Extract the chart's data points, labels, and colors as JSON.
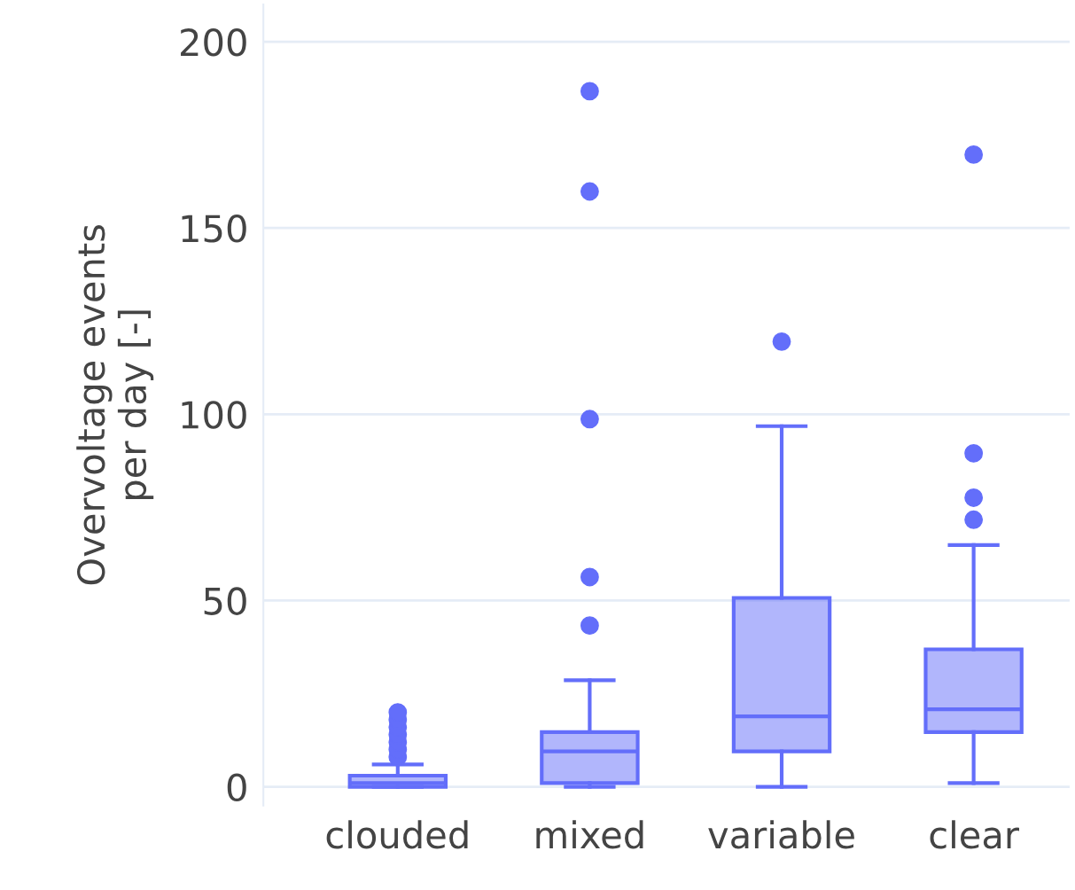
{
  "chart_data": {
    "type": "box",
    "ylabel": "Overvoltage events\nper day [-]",
    "categories": [
      "clouded",
      "mixed",
      "variable",
      "clear"
    ],
    "color": "#636efa",
    "boxes": [
      {
        "low": 0,
        "q1": 0,
        "median": 1,
        "q3": 3,
        "high": 6,
        "outliers": [
          8,
          10,
          12,
          14,
          16,
          18,
          20
        ]
      },
      {
        "low": 0,
        "q1": 1,
        "median": 9.5,
        "q3": 14.7,
        "high": 28.6,
        "outliers": [
          43.3,
          56.3,
          98.7,
          159.8,
          186.7
        ]
      },
      {
        "low": 0,
        "q1": 9.5,
        "median": 18.9,
        "q3": 50.7,
        "high": 96.8,
        "outliers": [
          119.5
        ]
      },
      {
        "low": 1,
        "q1": 14.7,
        "median": 20.8,
        "q3": 36.9,
        "high": 64.9,
        "outliers": [
          71.7,
          77.6,
          89.5,
          169.7
        ]
      }
    ],
    "ylim": [
      -5,
      210
    ],
    "yticks": [
      0,
      50,
      100,
      150,
      200
    ],
    "grid": "y",
    "marker": "circle"
  }
}
